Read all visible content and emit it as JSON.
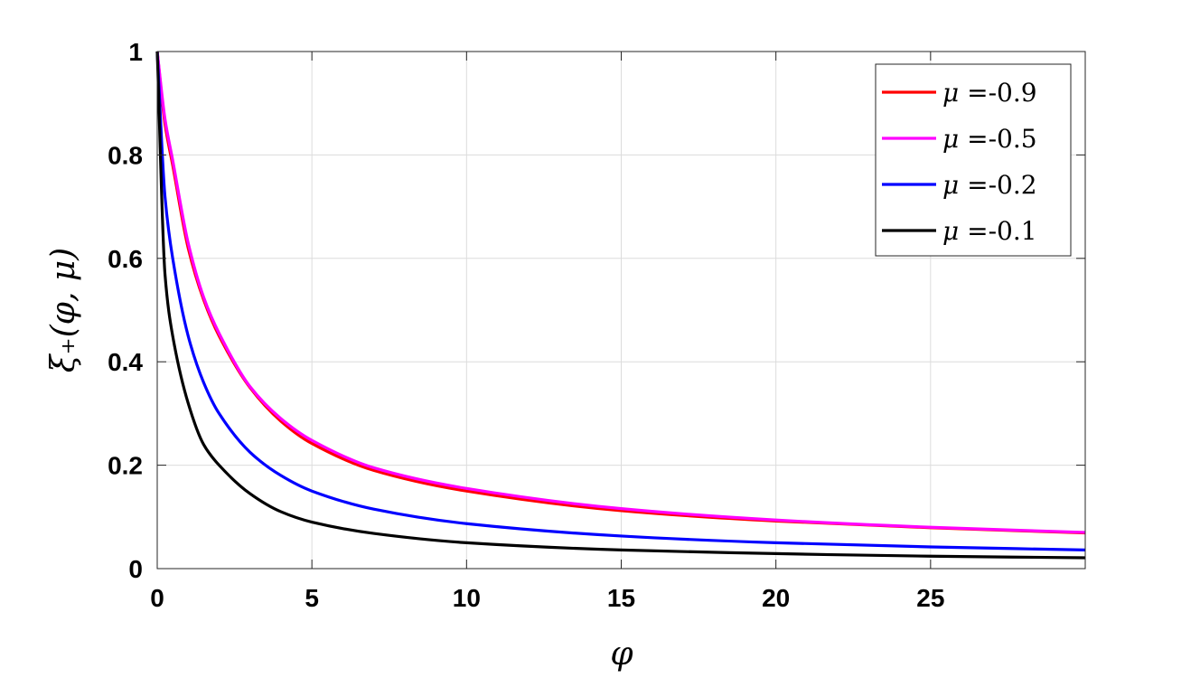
{
  "chart_data": {
    "type": "line",
    "xlabel": "φ",
    "ylabel": "ξ₊(φ, μ)",
    "xlim": [
      0,
      30
    ],
    "ylim": [
      0,
      1
    ],
    "x_ticks": [
      0,
      5,
      10,
      15,
      20,
      25
    ],
    "x_tick_labels": [
      "0",
      "5",
      "10",
      "15",
      "20",
      "25"
    ],
    "y_ticks": [
      0,
      0.2,
      0.4,
      0.6,
      0.8,
      1
    ],
    "y_tick_labels": [
      "0",
      "0.2",
      "0.4",
      "0.6",
      "0.8",
      "1"
    ],
    "grid": true,
    "legend_position": "top-right",
    "x": [
      0,
      0.25,
      0.5,
      1,
      1.5,
      2,
      3,
      4,
      5,
      7,
      10,
      15,
      20,
      25,
      30
    ],
    "series": [
      {
        "name": "μ =-0.9",
        "legend_symbol": "μ",
        "legend_value": "=-0.9",
        "color": "#ff0000",
        "values": [
          1.0,
          0.86,
          0.78,
          0.62,
          0.52,
          0.45,
          0.35,
          0.285,
          0.242,
          0.19,
          0.15,
          0.112,
          0.092,
          0.079,
          0.069
        ]
      },
      {
        "name": "μ =-0.5",
        "legend_symbol": "μ",
        "legend_value": "=-0.5",
        "color": "#ff00ff",
        "values": [
          1.0,
          0.87,
          0.79,
          0.63,
          0.525,
          0.455,
          0.352,
          0.29,
          0.248,
          0.195,
          0.155,
          0.116,
          0.094,
          0.08,
          0.07
        ]
      },
      {
        "name": "μ =-0.2",
        "legend_symbol": "μ",
        "legend_value": "=-0.2",
        "color": "#0000ff",
        "values": [
          1.0,
          0.72,
          0.6,
          0.45,
          0.36,
          0.3,
          0.225,
          0.18,
          0.15,
          0.115,
          0.087,
          0.063,
          0.05,
          0.042,
          0.036
        ]
      },
      {
        "name": "μ =-0.1",
        "legend_symbol": "μ",
        "legend_value": "=-0.1",
        "color": "#000000",
        "values": [
          1.0,
          0.57,
          0.45,
          0.32,
          0.24,
          0.2,
          0.145,
          0.11,
          0.09,
          0.068,
          0.05,
          0.036,
          0.029,
          0.024,
          0.021
        ]
      }
    ]
  }
}
